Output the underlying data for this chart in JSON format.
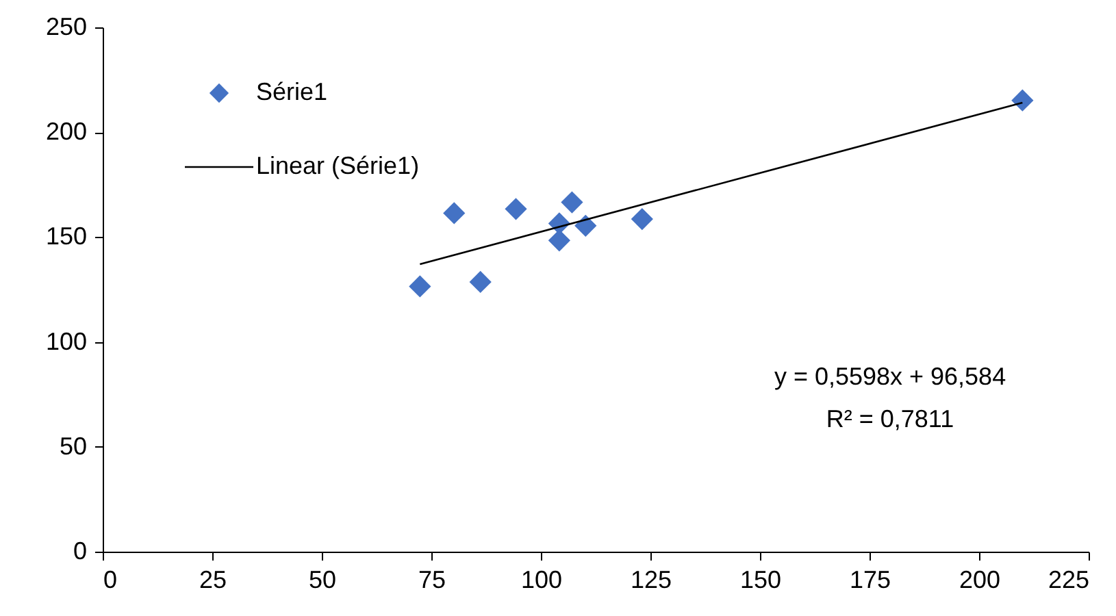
{
  "chart_data": {
    "type": "scatter",
    "xlim": [
      0,
      225
    ],
    "xticks": [
      0,
      25,
      50,
      75,
      100,
      125,
      150,
      175,
      200,
      225
    ],
    "ylim": [
      0,
      250
    ],
    "yticks": [
      0,
      50,
      100,
      150,
      200,
      250
    ],
    "grid": false,
    "legend": "top left",
    "annotations": [
      "y = 0,5598x + 96,584",
      "R² = 0,7811"
    ],
    "series": [
      {
        "name": "Série1",
        "marker": "diamond",
        "color": "#4472c4",
        "x": [
          72.4,
          80.2,
          86.2,
          94.3,
          104.2,
          104.2,
          107.1,
          110.2,
          123.1,
          209.9
        ],
        "values": [
          126.5,
          161.4,
          128.6,
          163.4,
          156.5,
          148.4,
          166.6,
          155.4,
          158.6,
          215.2
        ]
      },
      {
        "name": "Linear (Série1)",
        "type": "line",
        "color": "#000000",
        "line_style": "solid",
        "x": [
          72.4,
          209.9
        ],
        "values": [
          137.1,
          214.1
        ]
      }
    ]
  }
}
